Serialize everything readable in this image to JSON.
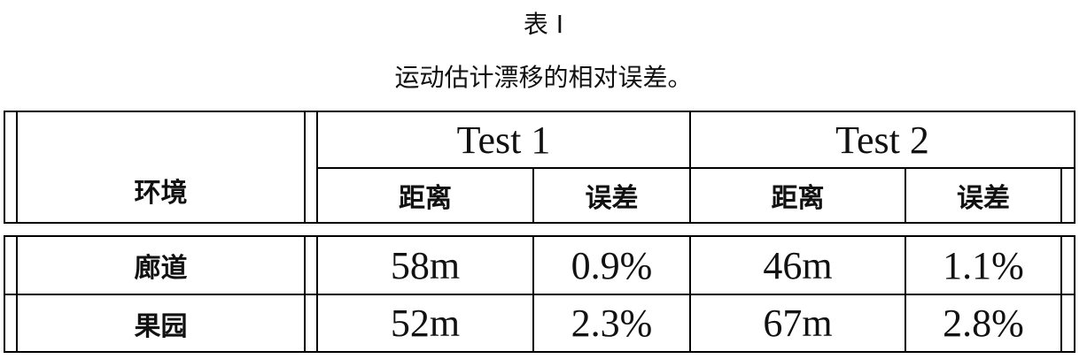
{
  "caption": {
    "label": "表 I",
    "text": "运动估计漂移的相对误差。"
  },
  "table": {
    "env_header": "环境",
    "groups": [
      "Test 1",
      "Test 2"
    ],
    "subheaders": [
      "距离",
      "误差",
      "距离",
      "误差"
    ],
    "rows": [
      {
        "env": "廊道",
        "cells": [
          "58m",
          "0.9%",
          "46m",
          "1.1%"
        ]
      },
      {
        "env": "果园",
        "cells": [
          "52m",
          "2.3%",
          "67m",
          "2.8%"
        ]
      }
    ]
  }
}
